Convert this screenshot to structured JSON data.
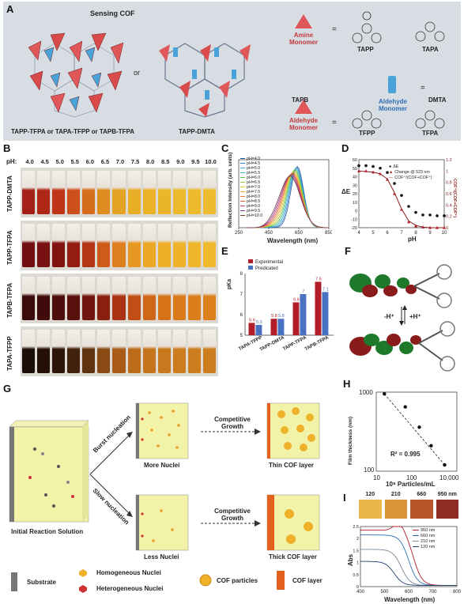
{
  "panelA": {
    "letter": "A",
    "sensing_cof": "Sensing COF",
    "or": "or",
    "caption_left": "TAPP-TFPA or TAPA-TFPP or TAPB-TFPA",
    "caption_right": "TAPP-DMTA",
    "amine_monomer": "Amine Monomer",
    "aldehyde_monomer_a": "Aldehyde Monomer",
    "aldehyde_monomer_b": "Aldehyde Monomer",
    "eq": "=",
    "names": [
      "TAPP",
      "TAPA",
      "TAPB",
      "DMTA",
      "TFPP",
      "TFPA"
    ]
  },
  "panelB": {
    "letter": "B",
    "ph_label": "pH:",
    "ph_values": [
      "4.0",
      "4.5",
      "5.0",
      "5.5",
      "6.0",
      "6.5",
      "7.0",
      "7.5",
      "8.0",
      "8.5",
      "9.0",
      "9.5",
      "10.0"
    ],
    "rows": [
      {
        "name": "TAPP-DMTA",
        "colors": [
          "#a31f17",
          "#b02617",
          "#c03418",
          "#cd4f1c",
          "#d56d1d",
          "#de8b20",
          "#e5a323",
          "#e8ae26",
          "#eab227",
          "#ebb52a",
          "#ecb82c",
          "#edba2e",
          "#edbb2f"
        ]
      },
      {
        "name": "TAPP-TFPA",
        "colors": [
          "#6f0d0f",
          "#780f10",
          "#831311",
          "#951c12",
          "#b33515",
          "#ce5b1a",
          "#de7f1f",
          "#e69823",
          "#eba726",
          "#edaf28",
          "#eeb32a",
          "#efb62c",
          "#efb82d"
        ]
      },
      {
        "name": "TAPB-TFPA",
        "colors": [
          "#3b0a0b",
          "#410b0b",
          "#4c0d0c",
          "#5a100d",
          "#6f150e",
          "#8a1f10",
          "#a93312",
          "#c14f15",
          "#cf6717",
          "#d67319",
          "#da7a1a",
          "#dc7e1b",
          "#dd801b"
        ]
      },
      {
        "name": "TAPA-TFPP",
        "colors": [
          "#1c0d08",
          "#241008",
          "#2e1409",
          "#41200c",
          "#603410",
          "#8a4a14",
          "#a95c18",
          "#bd6c1a",
          "#c6741c",
          "#ca781d",
          "#cc7b1d",
          "#cd7c1e",
          "#ce7d1e"
        ]
      }
    ]
  },
  "panelC": {
    "letter": "C",
    "ylabel": "Reflection Intensity (arb. units)",
    "xlabel": "Wavelength (nm)",
    "legend": [
      "pH=4.0",
      "pH=4.5",
      "pH=5.0",
      "pH=5.5",
      "pH=6.0",
      "pH=6.5",
      "pH=7.0",
      "pH=7.5",
      "pH=8.0",
      "pH=8.5",
      "pH=9.0",
      "pH=9.5",
      "pH=10.0"
    ],
    "series_colors": [
      "#1f4e9a",
      "#2e75c5",
      "#35a0d8",
      "#2cb7b0",
      "#55b94f",
      "#a0c63c",
      "#d6c932",
      "#e9a42b",
      "#e6762a",
      "#d94d3a",
      "#c23a73",
      "#8e3fa0",
      "#6c3b2a"
    ]
  },
  "panelD": {
    "letter": "D",
    "ylabel_left": "ΔE",
    "ylabel_right": "COF⁺/(COF+COF⁺)",
    "xlabel": "pH",
    "legend": [
      "ΔE",
      "Change @ 523 nm",
      "COF⁺/(COF+COF⁺)"
    ]
  },
  "panelE": {
    "letter": "E",
    "ylabel": "pKa",
    "legend": [
      "Experimental",
      "Predicated"
    ],
    "colors": {
      "experimental": "#b21d2a",
      "predicted": "#4a72c2"
    }
  },
  "panelF": {
    "letter": "F",
    "arrow_label_left": "-H⁺",
    "arrow_label_right": "+H⁺"
  },
  "panelG": {
    "letter": "G",
    "initial": "Initial Reaction Solution",
    "burst": "Burst nucleation",
    "slow": "Slow nucleation",
    "more_nuclei": "More Nuclei",
    "less_nuclei": "Less Nuclei",
    "competitive_top": "Competitive Growth",
    "competitive_bottom": "Competitive Growth",
    "thin": "Thin COF layer",
    "thick": "Thick COF layer",
    "legend": {
      "substrate": "Substrate",
      "homogeneous": "Homogeneous Nuclei",
      "heterogeneous": "Heterogeneous Nuclei",
      "particles": "COF particles",
      "layer": "COF layer"
    }
  },
  "panelH": {
    "letter": "H",
    "ylabel": "Film thickness (nm)",
    "xlabel": "10⁸ Particles/mL",
    "r2": "R² = 0.995",
    "yticks": [
      "1000",
      "100"
    ],
    "xticks": [
      "10",
      "100",
      "10,000"
    ]
  },
  "panelI": {
    "letter": "I",
    "swatch_labels": [
      "120",
      "210",
      "660",
      "950 nm"
    ],
    "swatch_colors": [
      "#e9b74a",
      "#d99438",
      "#b8562a",
      "#8f2c26"
    ],
    "ylabel": "Abs",
    "xlabel": "Wavelength (nm)",
    "legend": [
      "950 nm",
      "660 nm",
      "210 nm",
      "120 nm"
    ],
    "series_colors": [
      "#b21d2a",
      "#2e6fb5",
      "#7a8a99",
      "#1f3d6e"
    ]
  },
  "chart_data": [
    {
      "panel": "C",
      "type": "line",
      "xlabel": "Wavelength (nm)",
      "ylabel": "Reflection Intensity (arb. units)",
      "xlim": [
        250,
        850
      ],
      "xticks": [
        250,
        450,
        650,
        850
      ]
    },
    {
      "panel": "D",
      "type": "scatter",
      "xlabel": "pH",
      "ylabel": "ΔE",
      "xlim": [
        4,
        10
      ],
      "ylim": [
        -20,
        60
      ],
      "y2lim": [
        0,
        1.2
      ],
      "xticks": [
        4,
        5,
        6,
        7,
        8,
        9,
        10
      ],
      "yticks": [
        -20,
        -10,
        0,
        10,
        20,
        30,
        40,
        50,
        60
      ],
      "y2ticks": [
        0,
        0.2,
        0.4,
        0.6,
        0.8,
        1,
        1.2
      ],
      "series": [
        {
          "name": "ΔE",
          "x": [
            4.0,
            4.5,
            5.0,
            5.5,
            6.0,
            6.5,
            7.0,
            7.5,
            8.0,
            8.5,
            9.0,
            9.5,
            10.0
          ],
          "y": [
            53,
            53,
            52,
            50,
            45,
            32,
            18,
            5,
            -2,
            -5,
            -5,
            -6,
            -6
          ]
        },
        {
          "name": "Change @ 523 nm",
          "x": [
            4.0,
            4.5,
            5.0,
            5.5,
            6.0,
            6.5,
            7.0,
            7.5,
            8.0,
            8.5,
            9.0,
            9.5,
            10.0
          ],
          "y": [
            1.0,
            1.0,
            0.98,
            0.95,
            0.85,
            0.6,
            0.32,
            0.1,
            0.03,
            0.01,
            0.0,
            0.0,
            0.0
          ]
        },
        {
          "name": "COF⁺/(COF+COF⁺)",
          "x": [
            4.0,
            4.5,
            5.0,
            5.5,
            6.0,
            6.5,
            7.0,
            7.5,
            8.0,
            8.5,
            9.0,
            9.5,
            10.0
          ],
          "y": [
            1.0,
            0.99,
            0.98,
            0.95,
            0.86,
            0.62,
            0.33,
            0.12,
            0.04,
            0.01,
            0.0,
            0.0,
            0.0
          ]
        }
      ]
    },
    {
      "panel": "E",
      "type": "bar",
      "categories": [
        "TAPA-TFPP",
        "TAPP-DMTA",
        "TAPP-TFPA",
        "TAPB-TFPA"
      ],
      "ylabel": "pKa",
      "ylim": [
        5,
        8
      ],
      "yticks": [
        5,
        6,
        7,
        8
      ],
      "series": [
        {
          "name": "Experimental",
          "values": [
            5.6,
            5.8,
            6.6,
            7.6
          ]
        },
        {
          "name": "Predicated",
          "values": [
            5.5,
            5.8,
            7.0,
            7.1
          ]
        }
      ]
    },
    {
      "panel": "H",
      "type": "scatter",
      "xlabel": "10⁸ Particles/mL",
      "ylabel": "Film thickness (nm)",
      "xscale": "log",
      "yscale": "log",
      "xlim": [
        10,
        10000
      ],
      "ylim": [
        100,
        1000
      ],
      "series": [
        {
          "name": "",
          "x": [
            20,
            120,
            400,
            1100,
            3500
          ],
          "y": [
            950,
            650,
            360,
            210,
            120
          ]
        }
      ]
    },
    {
      "panel": "I",
      "type": "line",
      "xlabel": "Wavelength (nm)",
      "ylabel": "Abs",
      "xlim": [
        400,
        800
      ],
      "ylim": [
        0,
        2.5
      ],
      "xticks": [
        400,
        500,
        600,
        700,
        800
      ],
      "yticks": [
        0,
        0.5,
        1,
        1.5,
        2,
        2.5
      ]
    }
  ]
}
